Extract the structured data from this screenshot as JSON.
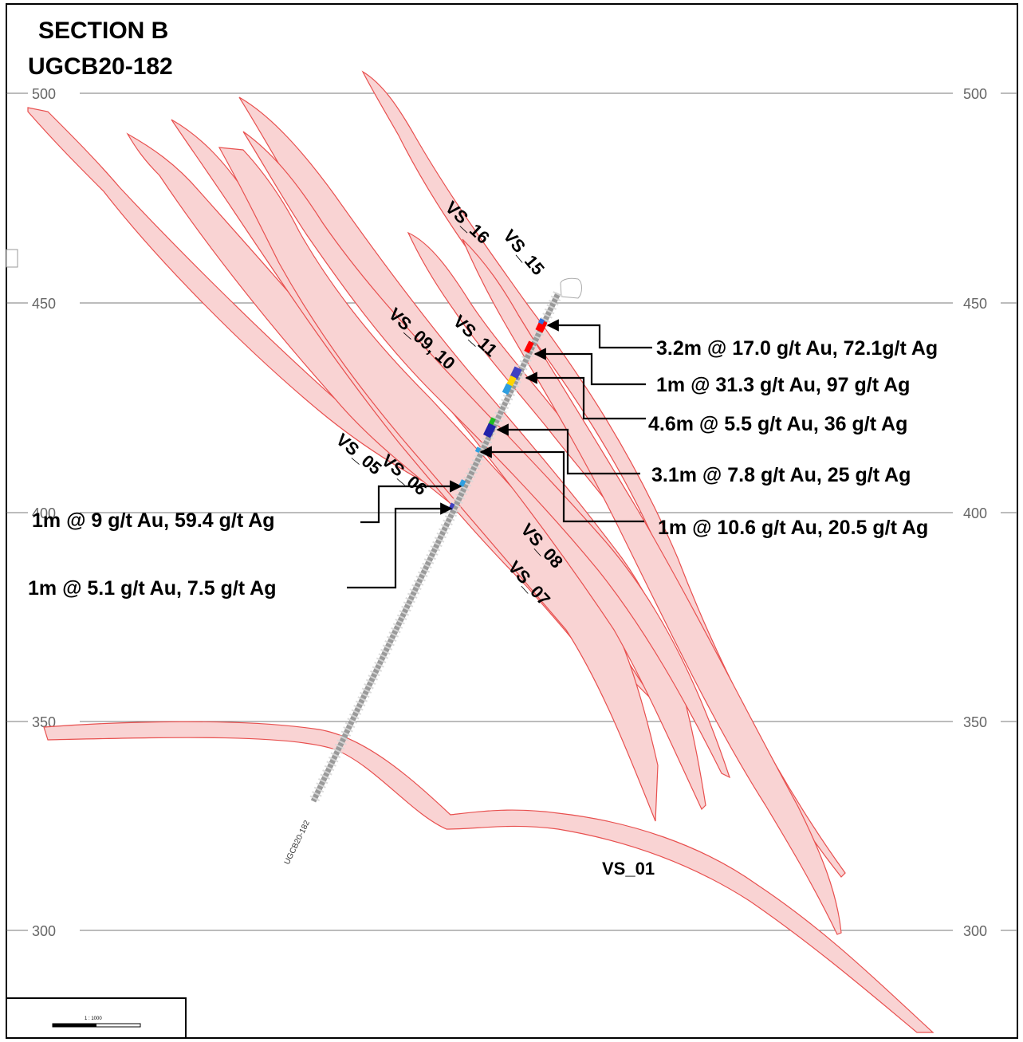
{
  "title": {
    "section": "SECTION B",
    "hole": "UGCB20-182"
  },
  "elevations": [
    {
      "value": "500",
      "left": "500",
      "right": "500"
    },
    {
      "value": "450",
      "left": "450",
      "right": "450"
    },
    {
      "value": "400",
      "left": "400",
      "right": "400"
    },
    {
      "value": "350",
      "left": "350",
      "right": "350"
    },
    {
      "value": "300",
      "left": "300",
      "right": "300"
    }
  ],
  "vein_labels": [
    "VS_16",
    "VS_15",
    "VS_11",
    "VS_09, 10",
    "VS_05",
    "VS_06",
    "VS_08",
    "VS_07",
    "VS_01"
  ],
  "drillhole": {
    "name": "UGCB20-182"
  },
  "intercepts": [
    "3.2m @ 17.0 g/t Au, 72.1g/t Ag",
    "1m @ 31.3 g/t Au, 97 g/t Ag",
    "4.6m @ 5.5 g/t Au, 36 g/t Ag",
    "3.1m @ 7.8 g/t Au, 25 g/t Ag",
    "1m @ 10.6 g/t Au, 20.5 g/t Ag",
    "1m @ 9 g/t Au, 59.4 g/t Ag",
    "1m @ 5.1 g/t Au, 7.5 g/t Ag"
  ],
  "scale": {
    "text": "1 : 1000"
  },
  "colors": {
    "vein_fill": "#f9d3d3",
    "vein_stroke": "#e8504f",
    "hole": "#9a9a9a",
    "high_grade": "#ff0000",
    "medium_grade": "#ffd400",
    "low_grade": "#2f6fe0",
    "trace_grade": "#22bb22"
  }
}
